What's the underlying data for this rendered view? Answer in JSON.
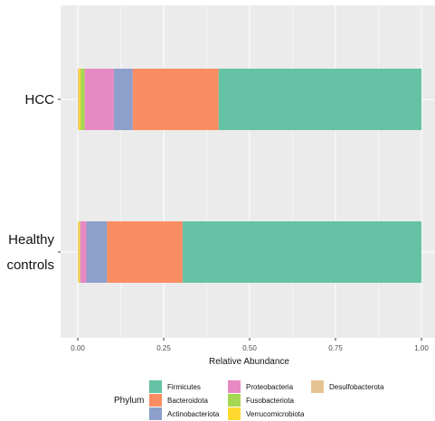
{
  "chart_data": {
    "type": "bar",
    "orientation": "horizontal",
    "stacked": true,
    "title": "",
    "xlabel": "Relative Abundance",
    "ylabel": "",
    "xlim": [
      0,
      1
    ],
    "x_ticks": [
      0,
      0.25,
      0.5,
      0.75,
      1
    ],
    "x_tick_labels": [
      "0.00",
      "0.25",
      "0.50",
      "0.75",
      "1.00"
    ],
    "grid": true,
    "legend_position": "bottom",
    "legend_title": "Phylum",
    "categories": [
      {
        "label": "HCC",
        "lines": [
          "HCC"
        ]
      },
      {
        "label": "Healthy controls",
        "lines": [
          "Healthy",
          "controls"
        ]
      }
    ],
    "series": [
      {
        "name": "Firmicutes",
        "color": "#66c2a5",
        "values": [
          0.59,
          0.695
        ]
      },
      {
        "name": "Bacteroidota",
        "color": "#fc8d62",
        "values": [
          0.25,
          0.22
        ]
      },
      {
        "name": "Actinobacteriota",
        "color": "#8da0cb",
        "values": [
          0.055,
          0.06
        ]
      },
      {
        "name": "Proteobacteria",
        "color": "#e78ac3",
        "values": [
          0.085,
          0.018
        ]
      },
      {
        "name": "Fusobacteriota",
        "color": "#a6d854",
        "values": [
          0.012,
          0.001
        ]
      },
      {
        "name": "Verrucomicrobiota",
        "color": "#ffd92f",
        "values": [
          0.005,
          0.004
        ]
      },
      {
        "name": "Desulfobacterota",
        "color": "#e5c494",
        "values": [
          0.003,
          0.002
        ]
      }
    ]
  }
}
